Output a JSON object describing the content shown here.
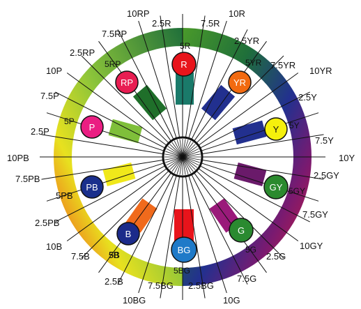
{
  "outer_labels": [
    {
      "id": "l-10rp",
      "text": "10RP"
    },
    {
      "id": "l-10r",
      "text": "10R"
    },
    {
      "id": "l-2-5r",
      "text": "2.5R"
    },
    {
      "id": "l-7-5r",
      "text": "7.5R"
    },
    {
      "id": "l-7-5rp",
      "text": "7.5RP"
    },
    {
      "id": "l-2-5yr",
      "text": "2.5YR"
    },
    {
      "id": "l-2-5rp",
      "text": "2.5RP"
    },
    {
      "id": "l-7-5yr",
      "text": "7.5YR"
    },
    {
      "id": "l-10p",
      "text": "10P"
    },
    {
      "id": "l-10yr",
      "text": "10YR"
    },
    {
      "id": "l-7-5p",
      "text": "7.5P"
    },
    {
      "id": "l-2-5y",
      "text": "2.5Y"
    },
    {
      "id": "l-2-5p",
      "text": "2.5P"
    },
    {
      "id": "l-7-5y",
      "text": "7.5Y"
    },
    {
      "id": "l-10pb",
      "text": "10PB"
    },
    {
      "id": "l-10y",
      "text": "10Y"
    },
    {
      "id": "l-7-5pb",
      "text": "7.5PB"
    },
    {
      "id": "l-2-5gy",
      "text": "2.5GY"
    },
    {
      "id": "l-5pb",
      "text": "5PB"
    },
    {
      "id": "l-2-5pb",
      "text": "2.5PB"
    },
    {
      "id": "l-7-5gy",
      "text": "7.5GY"
    },
    {
      "id": "l-10b",
      "text": "10B"
    },
    {
      "id": "l-10gy",
      "text": "10GY"
    },
    {
      "id": "l-7-5b",
      "text": "7.5B"
    },
    {
      "id": "l-5b",
      "text": "5B"
    },
    {
      "id": "l-2-5g",
      "text": "2.5G"
    },
    {
      "id": "l-2-5b",
      "text": "2.5B"
    },
    {
      "id": "l-7-5g",
      "text": "7.5G"
    },
    {
      "id": "l-7-5bg",
      "text": "7.5BG"
    },
    {
      "id": "l-2-5bg",
      "text": "2.5BG"
    },
    {
      "id": "l-10bg",
      "text": "10BG"
    },
    {
      "id": "l-10g",
      "text": "10G"
    }
  ],
  "inner_labels": [
    {
      "id": "i-5r",
      "text": "5R"
    },
    {
      "id": "i-5rp",
      "text": "5RP"
    },
    {
      "id": "i-5yr",
      "text": "5YR"
    },
    {
      "id": "i-5p",
      "text": "5P"
    },
    {
      "id": "i-5y",
      "text": "5Y"
    },
    {
      "id": "i-5gy",
      "text": "5GY"
    },
    {
      "id": "i-5g",
      "text": "5G"
    },
    {
      "id": "i-5b",
      "text": "5B"
    },
    {
      "id": "i-5bg",
      "text": "5BG"
    }
  ],
  "hue_circles": [
    {
      "id": "c-r",
      "text": "R",
      "color": "#e8141b",
      "text_color": "#ffffff"
    },
    {
      "id": "c-rp",
      "text": "RP",
      "color": "#e81d52",
      "text_color": "#ffffff"
    },
    {
      "id": "c-yr",
      "text": "YR",
      "color": "#f26a10",
      "text_color": "#ffffff"
    },
    {
      "id": "c-p",
      "text": "P",
      "color": "#ea1e82",
      "text_color": "#ffffff"
    },
    {
      "id": "c-y",
      "text": "Y",
      "color": "#f5f00c",
      "text_color": "#111111"
    },
    {
      "id": "c-gy",
      "text": "GY",
      "color": "#2b8a2e",
      "text_color": "#ffffff"
    },
    {
      "id": "c-pb",
      "text": "PB",
      "color": "#1a2f8c",
      "text_color": "#ffffff"
    },
    {
      "id": "c-g",
      "text": "G",
      "color": "#2a8a30",
      "text_color": "#ffffff"
    },
    {
      "id": "c-b",
      "text": "B",
      "color": "#1c2b8a",
      "text_color": "#ffffff"
    },
    {
      "id": "c-bg",
      "text": "BG",
      "color": "#1f7ac8",
      "text_color": "#ffffff"
    }
  ],
  "colors": {
    "ring_top": "#1f7a2d",
    "ring_upper_right": "#1f2f90",
    "ring_right": "#2a2a8a",
    "ring_lower_right": "#7a1a7a",
    "ring_bottom": "#e8222a",
    "ring_lower_left": "#f06a1c",
    "ring_left": "#e8e11f",
    "ring_upper_left": "#8bc43a",
    "spokes": "#111111"
  }
}
